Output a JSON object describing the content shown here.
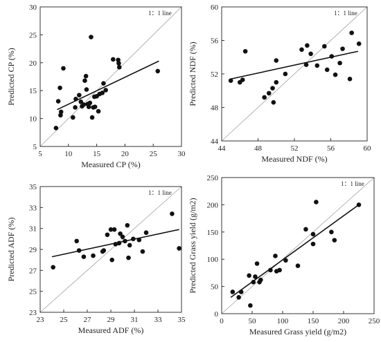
{
  "chart_data": [
    {
      "type": "scatter",
      "xlabel": "Measured  CP (%)",
      "ylabel": "Predicted  CP (%)",
      "line_label": "1：1 line",
      "xlim": [
        5,
        30
      ],
      "ylim": [
        5,
        30
      ],
      "xticks": [
        5,
        10,
        15,
        20,
        25,
        30
      ],
      "yticks": [
        5,
        10,
        15,
        20,
        25,
        30
      ],
      "fit": [
        [
          8,
          11.6
        ],
        [
          26,
          20.3
        ]
      ],
      "points": [
        [
          7.8,
          8.3
        ],
        [
          8.2,
          13.1
        ],
        [
          8.5,
          15.5
        ],
        [
          8.6,
          10.6
        ],
        [
          8.7,
          11.2
        ],
        [
          9.1,
          19.0
        ],
        [
          10.8,
          10.2
        ],
        [
          11.2,
          12.0
        ],
        [
          11.3,
          13.5
        ],
        [
          11.9,
          14.2
        ],
        [
          12.2,
          13.0
        ],
        [
          12.4,
          12.2
        ],
        [
          12.7,
          12.5
        ],
        [
          12.9,
          16.8
        ],
        [
          13.1,
          17.6
        ],
        [
          13.2,
          15.2
        ],
        [
          13.4,
          12.6
        ],
        [
          13.6,
          12.1
        ],
        [
          13.8,
          12.8
        ],
        [
          14.0,
          24.6
        ],
        [
          14.2,
          10.2
        ],
        [
          14.4,
          12.0
        ],
        [
          14.6,
          13.9
        ],
        [
          14.7,
          12.1
        ],
        [
          15.0,
          14.0
        ],
        [
          15.3,
          11.3
        ],
        [
          15.5,
          14.4
        ],
        [
          16.0,
          14.6
        ],
        [
          16.2,
          16.3
        ],
        [
          16.6,
          15.1
        ],
        [
          17.9,
          20.6
        ],
        [
          18.8,
          20.5
        ],
        [
          18.9,
          19.9
        ],
        [
          19.0,
          19.2
        ],
        [
          25.8,
          18.5
        ]
      ]
    },
    {
      "type": "scatter",
      "xlabel": "Measured  NDF (%)",
      "ylabel": "Predicted  NDF (%)",
      "line_label": "1：1 line",
      "xlim": [
        44,
        60
      ],
      "ylim": [
        44,
        60
      ],
      "xticks": [
        44,
        48,
        52,
        56,
        60
      ],
      "yticks": [
        44,
        48,
        52,
        56,
        60
      ],
      "fit": [
        [
          45,
          51.4
        ],
        [
          59,
          54.7
        ]
      ],
      "points": [
        [
          45.0,
          51.2
        ],
        [
          46.0,
          51.0
        ],
        [
          46.3,
          51.3
        ],
        [
          46.6,
          54.7
        ],
        [
          48.7,
          49.2
        ],
        [
          49.2,
          49.7
        ],
        [
          49.6,
          50.3
        ],
        [
          49.7,
          48.6
        ],
        [
          50.0,
          51.0
        ],
        [
          50.0,
          53.6
        ],
        [
          51.0,
          52.0
        ],
        [
          52.8,
          54.9
        ],
        [
          53.3,
          53.1
        ],
        [
          53.4,
          55.4
        ],
        [
          53.8,
          54.4
        ],
        [
          54.5,
          53.0
        ],
        [
          55.3,
          55.3
        ],
        [
          55.6,
          52.5
        ],
        [
          56.1,
          54.1
        ],
        [
          56.5,
          51.9
        ],
        [
          57.0,
          53.3
        ],
        [
          57.3,
          55.0
        ],
        [
          58.1,
          51.4
        ],
        [
          58.3,
          56.9
        ],
        [
          59.1,
          55.6
        ]
      ]
    },
    {
      "type": "scatter",
      "xlabel": "Measured  ADF (%)",
      "ylabel": "Predicted  ADF (%)",
      "line_label": "1：1 line",
      "xlim": [
        23,
        35
      ],
      "ylim": [
        23,
        35
      ],
      "xticks": [
        23,
        25,
        27,
        29,
        31,
        33,
        35
      ],
      "yticks": [
        23,
        25,
        27,
        29,
        31,
        33,
        35
      ],
      "fit": [
        [
          24,
          28.3
        ],
        [
          34.8,
          30.9
        ]
      ],
      "points": [
        [
          24.1,
          27.3
        ],
        [
          26.1,
          29.8
        ],
        [
          26.3,
          28.9
        ],
        [
          26.7,
          28.3
        ],
        [
          27.5,
          28.4
        ],
        [
          28.3,
          28.8
        ],
        [
          28.4,
          28.9
        ],
        [
          28.7,
          30.4
        ],
        [
          29.0,
          30.9
        ],
        [
          29.1,
          28.0
        ],
        [
          29.3,
          30.9
        ],
        [
          29.4,
          29.5
        ],
        [
          29.7,
          29.6
        ],
        [
          29.8,
          30.5
        ],
        [
          30.0,
          30.2
        ],
        [
          30.2,
          29.8
        ],
        [
          30.4,
          31.3
        ],
        [
          30.5,
          28.2
        ],
        [
          30.6,
          29.4
        ],
        [
          30.9,
          30.0
        ],
        [
          31.4,
          29.9
        ],
        [
          31.7,
          28.8
        ],
        [
          32.0,
          30.6
        ],
        [
          34.2,
          32.4
        ],
        [
          34.8,
          29.1
        ]
      ]
    },
    {
      "type": "scatter",
      "xlabel": "Measured  Grass yield (g/m2)",
      "ylabel": "Predicted Grass yield (g/m2)",
      "line_label": "1：1 line",
      "xlim": [
        0,
        250
      ],
      "ylim": [
        0,
        250
      ],
      "xticks": [
        0,
        50,
        100,
        150,
        200,
        250
      ],
      "yticks": [
        0,
        50,
        100,
        150,
        200,
        250
      ],
      "fit": [
        [
          15,
          30
        ],
        [
          225,
          200
        ]
      ],
      "points": [
        [
          18,
          40
        ],
        [
          28,
          30
        ],
        [
          32,
          40
        ],
        [
          45,
          70
        ],
        [
          47,
          15
        ],
        [
          52,
          58
        ],
        [
          55,
          68
        ],
        [
          58,
          92
        ],
        [
          62,
          58
        ],
        [
          64,
          62
        ],
        [
          80,
          80
        ],
        [
          88,
          106
        ],
        [
          90,
          78
        ],
        [
          95,
          80
        ],
        [
          105,
          98
        ],
        [
          125,
          88
        ],
        [
          138,
          155
        ],
        [
          150,
          128
        ],
        [
          150,
          146
        ],
        [
          155,
          205
        ],
        [
          180,
          150
        ],
        [
          185,
          135
        ],
        [
          225,
          200
        ]
      ]
    }
  ]
}
